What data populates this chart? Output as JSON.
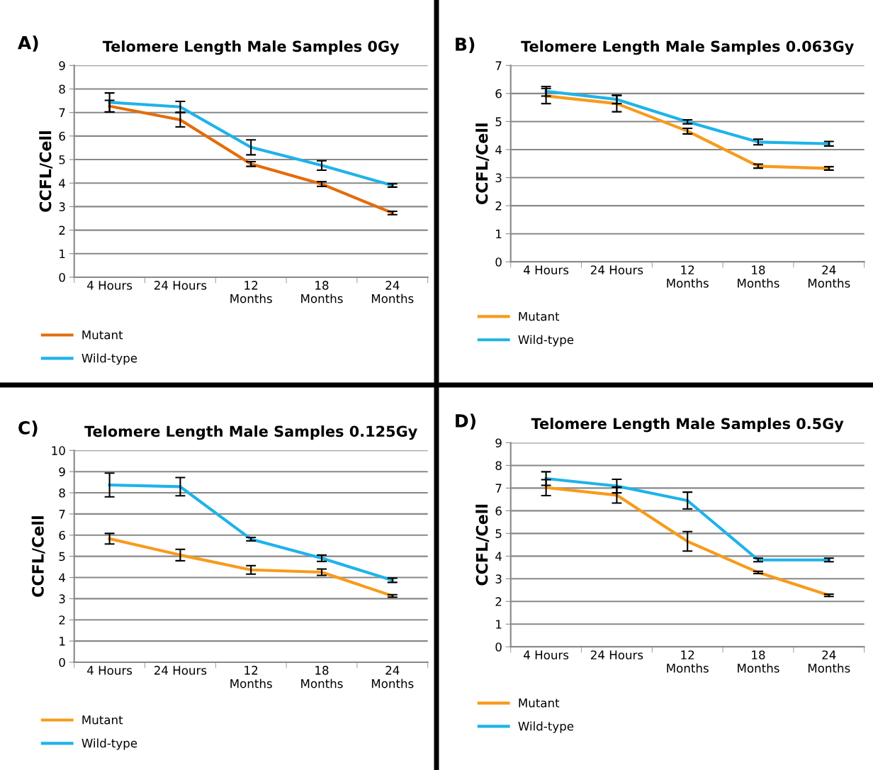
{
  "chart_data": [
    {
      "type": "line",
      "title": "Telomere Length Male Samples 0Gy",
      "ylabel": "CCFL/Cell",
      "annotations": [
        "A)"
      ],
      "categories": [
        "4 Hours",
        "24 Hours",
        "12\nMonths",
        "18\nMonths",
        "24\nMonths"
      ],
      "ylim": [
        0,
        9
      ],
      "yticks": [
        0,
        1,
        2,
        3,
        4,
        5,
        6,
        7,
        8,
        9
      ],
      "grid": "y",
      "legend": "bottom left",
      "marker": "none",
      "line_style": "solid",
      "series": [
        {
          "name": "Mutant",
          "color": "#e46c0a",
          "values": [
            7.27,
            6.69,
            4.81,
            3.96,
            2.73
          ],
          "errors": [
            0.25,
            0.3,
            0.1,
            0.1,
            0.07
          ]
        },
        {
          "name": "Wild-type",
          "color": "#1fb3e8",
          "values": [
            7.43,
            7.24,
            5.52,
            4.75,
            3.9
          ],
          "errors": [
            0.4,
            0.23,
            0.32,
            0.2,
            0.07
          ]
        }
      ]
    },
    {
      "type": "line",
      "title": "Telomere Length Male Samples 0.063Gy",
      "ylabel": "CCFL/Cell",
      "annotations": [
        "B)"
      ],
      "categories": [
        "4 Hours",
        "24 Hours",
        "12\nMonths",
        "18\nMonths",
        "24\nMonths"
      ],
      "ylim": [
        0,
        7
      ],
      "yticks": [
        0,
        1,
        2,
        3,
        4,
        5,
        6,
        7
      ],
      "grid": "y",
      "legend": "bottom left",
      "marker": "none",
      "line_style": "solid",
      "series": [
        {
          "name": "Mutant",
          "color": "#f79b1c",
          "values": [
            5.91,
            5.64,
            4.66,
            3.41,
            3.33
          ],
          "errors": [
            0.27,
            0.29,
            0.1,
            0.07,
            0.06
          ]
        },
        {
          "name": "Wild-type",
          "color": "#1fb3e8",
          "values": [
            6.08,
            5.79,
            4.99,
            4.27,
            4.21
          ],
          "errors": [
            0.17,
            0.15,
            0.07,
            0.1,
            0.08
          ]
        }
      ]
    },
    {
      "type": "line",
      "title": "Telomere Length Male Samples 0.125Gy",
      "ylabel": "CCFL/Cell",
      "annotations": [
        "C)"
      ],
      "categories": [
        "4 Hours",
        "24 Hours",
        "12\nMonths",
        "18\nMonths",
        "24\nMonths"
      ],
      "ylim": [
        0,
        10
      ],
      "yticks": [
        0,
        1,
        2,
        3,
        4,
        5,
        6,
        7,
        8,
        9,
        10
      ],
      "grid": "y",
      "legend": "bottom left",
      "marker": "none",
      "line_style": "solid",
      "series": [
        {
          "name": "Mutant",
          "color": "#f79b1c",
          "values": [
            5.83,
            5.06,
            4.36,
            4.25,
            3.13
          ],
          "errors": [
            0.25,
            0.27,
            0.2,
            0.15,
            0.06
          ]
        },
        {
          "name": "Wild-type",
          "color": "#1fb3e8",
          "values": [
            8.37,
            8.29,
            5.81,
            4.91,
            3.87
          ],
          "errors": [
            0.56,
            0.43,
            0.08,
            0.15,
            0.1
          ]
        }
      ]
    },
    {
      "type": "line",
      "title": "Telomere Length Male Samples 0.5Gy",
      "ylabel": "CCFL/Cell",
      "annotations": [
        "D)"
      ],
      "categories": [
        "4 Hours",
        "24 Hours",
        "12\nMonths",
        "18\nMonths",
        "24\nMonths"
      ],
      "ylim": [
        0,
        9
      ],
      "yticks": [
        0,
        1,
        2,
        3,
        4,
        5,
        6,
        7,
        8,
        9
      ],
      "grid": "y",
      "legend": "bottom left",
      "marker": "none",
      "line_style": "solid",
      "series": [
        {
          "name": "Mutant",
          "color": "#f79b1c",
          "values": [
            7.02,
            6.69,
            4.65,
            3.28,
            2.27
          ],
          "errors": [
            0.35,
            0.35,
            0.43,
            0.05,
            0.05
          ]
        },
        {
          "name": "Wild-type",
          "color": "#1fb3e8",
          "values": [
            7.42,
            7.09,
            6.45,
            3.83,
            3.83
          ],
          "errors": [
            0.3,
            0.3,
            0.37,
            0.08,
            0.08
          ]
        }
      ]
    }
  ]
}
